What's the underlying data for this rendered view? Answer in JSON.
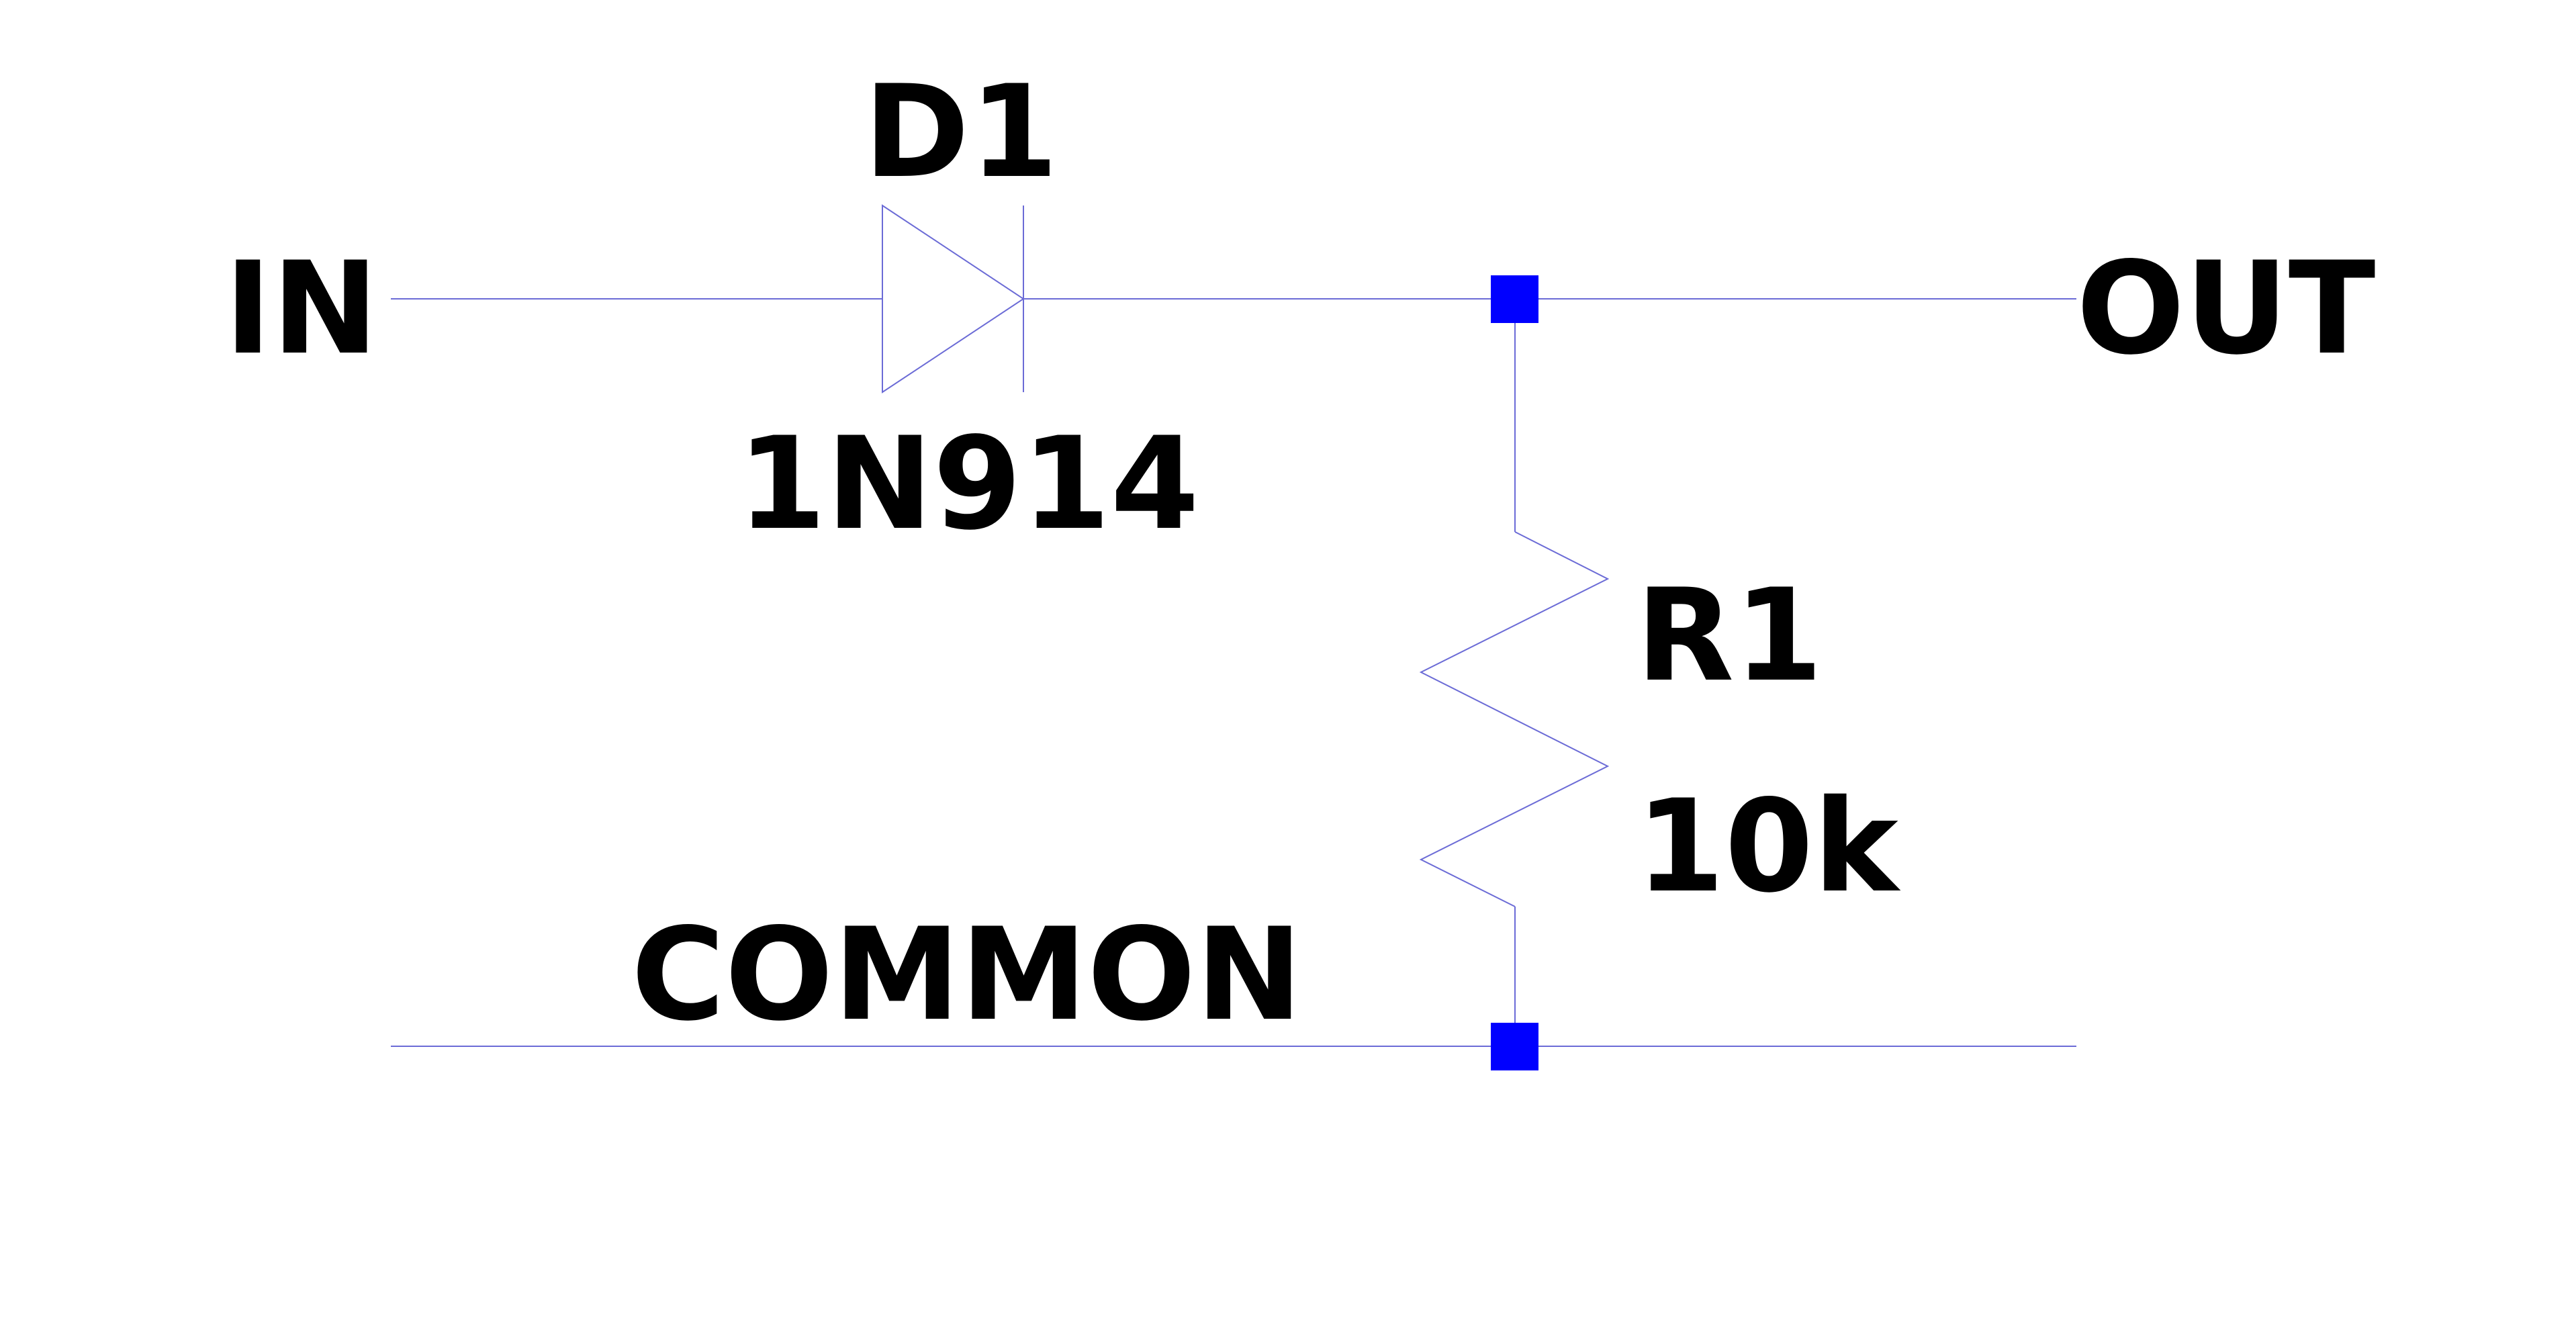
{
  "labels": {
    "input": "IN",
    "output": "OUT",
    "ground": "COMMON",
    "diode_ref": "D1",
    "diode_value": "1N914",
    "resistor_ref": "R1",
    "resistor_value": "10k"
  },
  "colors": {
    "wire": "#6b6bd6",
    "junction": "#0000ff",
    "text": "#000000",
    "background": "#ffffff"
  }
}
